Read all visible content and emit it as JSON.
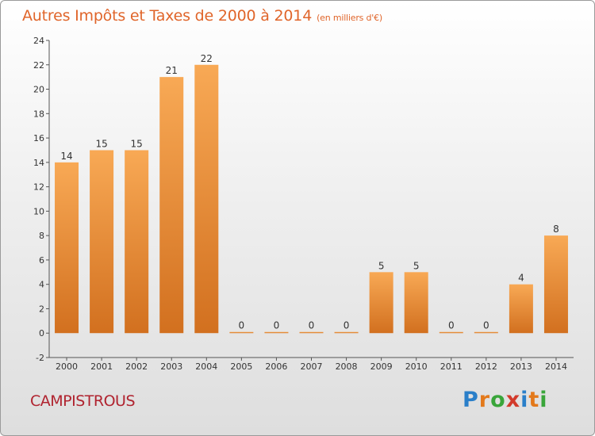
{
  "title": "Autres Impôts et Taxes de 2000 à 2014",
  "unit": "(en milliers d'€)",
  "place": "CAMPISTROUS",
  "logo": {
    "letters": [
      "P",
      "r",
      "o",
      "x",
      "i",
      "t",
      "i"
    ],
    "colors": [
      "#2a7fc9",
      "#e3791b",
      "#39a53a",
      "#d23a2b",
      "#2a7fc9",
      "#e3791b",
      "#39a53a"
    ]
  },
  "colors": {
    "bar_top": "#f8a955",
    "bar_bottom": "#d2701f",
    "title": "#e0652a",
    "place": "#b0232f"
  },
  "chart_data": {
    "type": "bar",
    "categories": [
      "2000",
      "2001",
      "2002",
      "2003",
      "2004",
      "2005",
      "2006",
      "2007",
      "2008",
      "2009",
      "2010",
      "2011",
      "2012",
      "2013",
      "2014"
    ],
    "values": [
      14,
      15,
      15,
      21,
      22,
      0,
      0,
      0,
      0,
      5,
      5,
      0,
      0,
      4,
      8
    ],
    "ylim": [
      -2,
      24
    ],
    "yticks": [
      -2,
      0,
      2,
      4,
      6,
      8,
      10,
      12,
      14,
      16,
      18,
      20,
      22,
      24
    ],
    "grid": false,
    "xlabel": "",
    "ylabel": ""
  }
}
